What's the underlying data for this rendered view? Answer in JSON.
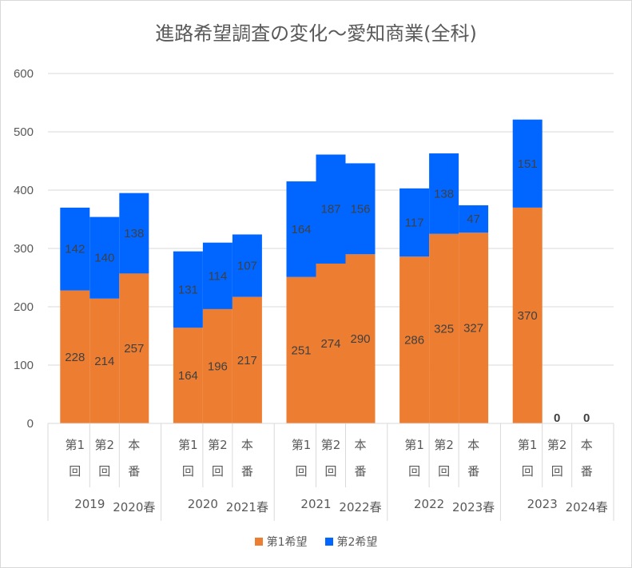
{
  "chart_data": {
    "type": "bar",
    "stacked": true,
    "title": "進路希望調査の変化～愛知商業(全科)",
    "xlabel": "",
    "ylabel": "",
    "ylim": [
      0,
      600
    ],
    "yticks": [
      0,
      100,
      200,
      300,
      400,
      500,
      600
    ],
    "grid": true,
    "legend_position": "bottom",
    "groups": [
      {
        "year": "2019",
        "spring": "2020春",
        "categories": [
          "第1回",
          "第2回",
          "本番"
        ]
      },
      {
        "year": "2020",
        "spring": "2021春",
        "categories": [
          "第1回",
          "第2回",
          "本番"
        ]
      },
      {
        "year": "2021",
        "spring": "2022春",
        "categories": [
          "第1回",
          "第2回",
          "本番"
        ]
      },
      {
        "year": "2022",
        "spring": "2023春",
        "categories": [
          "第1回",
          "第2回",
          "本番"
        ]
      },
      {
        "year": "2023",
        "spring": "2024春",
        "categories": [
          "第1回",
          "第2回",
          "本番"
        ]
      }
    ],
    "series": [
      {
        "name": "第1希望",
        "color": "#ed7d31",
        "values": [
          228,
          214,
          257,
          164,
          196,
          217,
          251,
          274,
          290,
          286,
          325,
          327,
          370,
          0,
          0
        ]
      },
      {
        "name": "第2希望",
        "color": "#0066ff",
        "values": [
          142,
          140,
          138,
          131,
          114,
          107,
          164,
          187,
          156,
          117,
          138,
          47,
          151,
          0,
          0
        ]
      }
    ],
    "total_labels": [
      "",
      "",
      "",
      "",
      "",
      "",
      "",
      "",
      "",
      "",
      "",
      "",
      "",
      "0",
      "0"
    ]
  }
}
